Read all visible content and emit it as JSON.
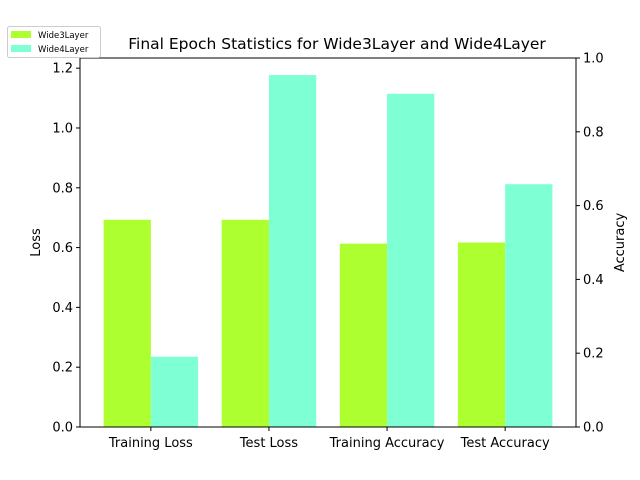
{
  "chart_data": {
    "type": "bar",
    "title": "Final Epoch Statistics for Wide3Layer and Wide4Layer",
    "categories": [
      "Training Loss",
      "Test Loss",
      "Training Accuracy",
      "Test Accuracy"
    ],
    "series": [
      {
        "name": "Wide3Layer",
        "color": "#adff2f",
        "axis": [
          "left",
          "left",
          "right",
          "right"
        ],
        "values": [
          0.693,
          0.693,
          0.497,
          0.5
        ]
      },
      {
        "name": "Wide4Layer",
        "color": "#7fffd4",
        "axis": [
          "left",
          "left",
          "right",
          "right"
        ],
        "values": [
          0.235,
          1.177,
          0.903,
          0.658
        ]
      }
    ],
    "ylabel_left": "Loss",
    "ylabel_right": "Accuracy",
    "ylim_left": [
      0,
      1.234
    ],
    "ylim_right": [
      0,
      1.0
    ],
    "yticks_left": [
      "0.0",
      "0.2",
      "0.4",
      "0.6",
      "0.8",
      "1.0",
      "1.2"
    ],
    "yticks_right": [
      "0.0",
      "0.2",
      "0.4",
      "0.6",
      "0.8",
      "1.0"
    ],
    "legend_position": "top-left"
  }
}
